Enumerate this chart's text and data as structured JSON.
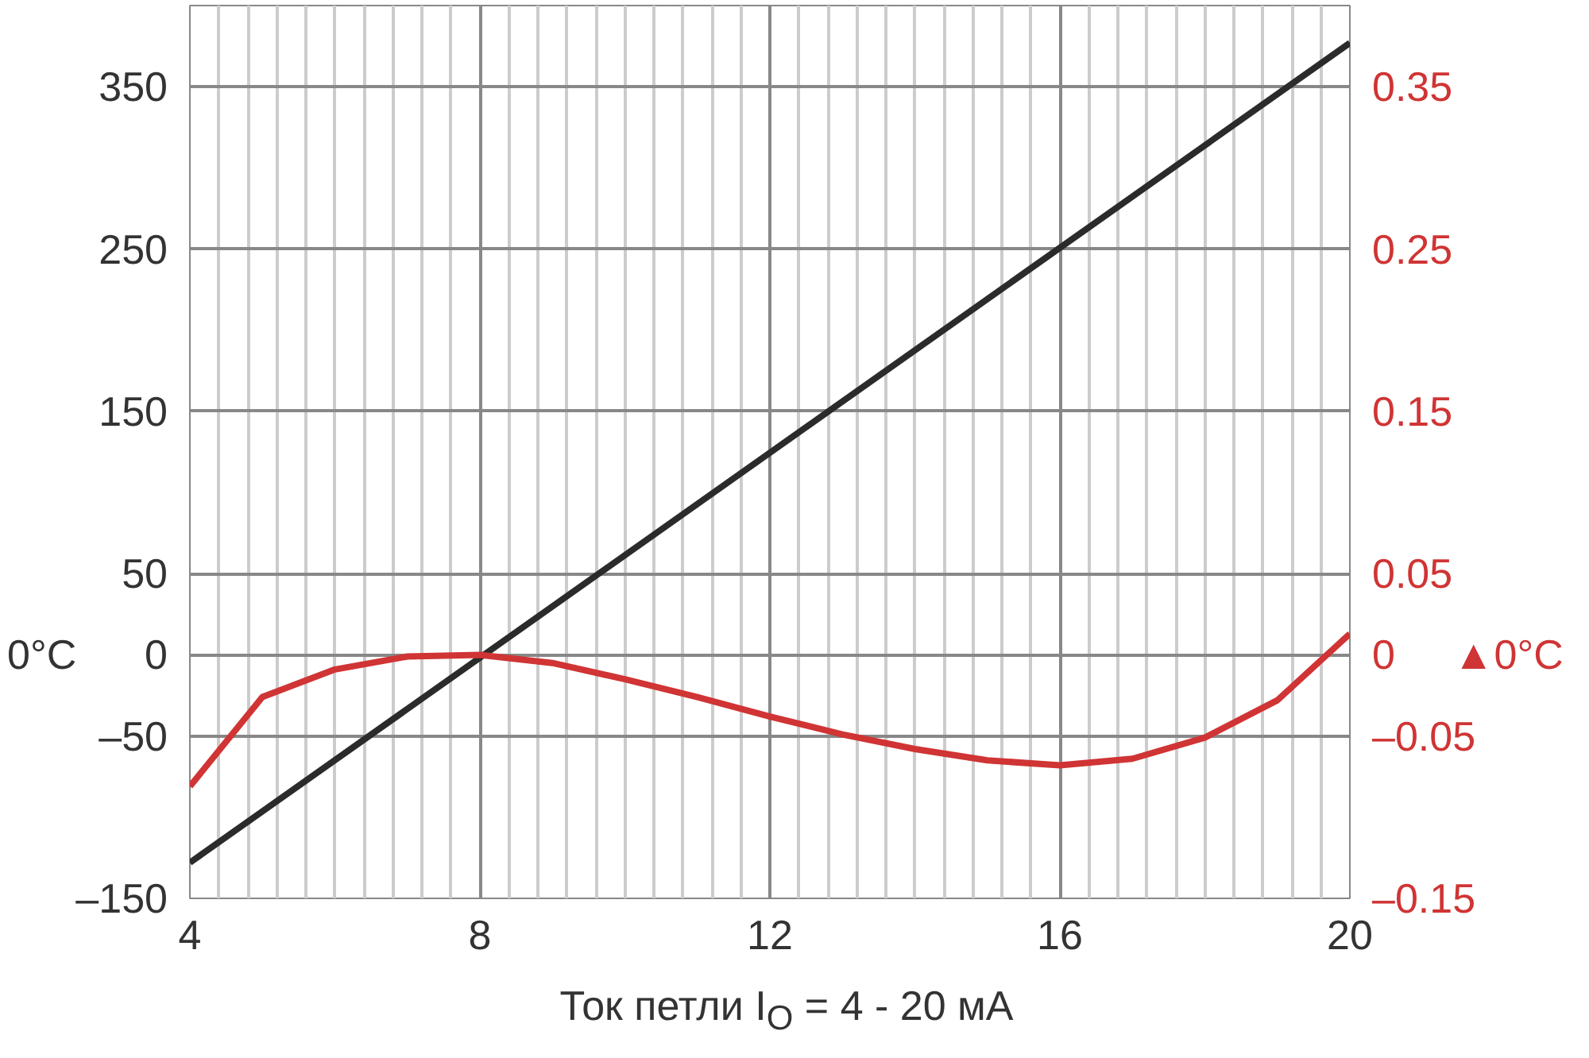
{
  "chart_data": {
    "type": "line",
    "xlabel": "Ток петли I$_{O}$ = 4 - 20 мА",
    "ylabel": "0°C",
    "y2label": "▲0°C",
    "xlim": [
      4,
      20
    ],
    "xticks": [
      4,
      8,
      12,
      16,
      20
    ],
    "ylim": [
      -150,
      400
    ],
    "yticks": [
      {
        "value": -150,
        "label": "–150"
      },
      {
        "value": -50,
        "label": "–50"
      },
      0,
      50,
      150,
      250,
      350
    ],
    "y2lim": [
      -0.15,
      0.4
    ],
    "y2ticks": [
      {
        "value": -0.15,
        "label": "–0.15"
      },
      {
        "value": -0.05,
        "label": "–0.05"
      },
      0,
      0.05,
      0.15,
      0.25,
      0.35
    ],
    "grid": true,
    "marker": "none",
    "line_style": "solid",
    "series": [
      {
        "color": "#2b2b2b",
        "x": [
          4,
          20
        ],
        "values": [
          -128,
          377
        ]
      },
      {
        "color": "#d03434",
        "axis": "y2",
        "x": [
          4,
          5,
          6,
          7,
          8,
          9,
          10,
          11,
          12,
          13,
          14,
          15,
          16,
          17,
          18,
          19,
          20
        ],
        "values": [
          -0.081,
          -0.026,
          -0.009,
          -0.001,
          0,
          -0.005,
          -0.015,
          -0.026,
          -0.038,
          -0.049,
          -0.058,
          -0.065,
          -0.068,
          -0.064,
          -0.051,
          -0.028,
          0.013
        ]
      }
    ]
  }
}
